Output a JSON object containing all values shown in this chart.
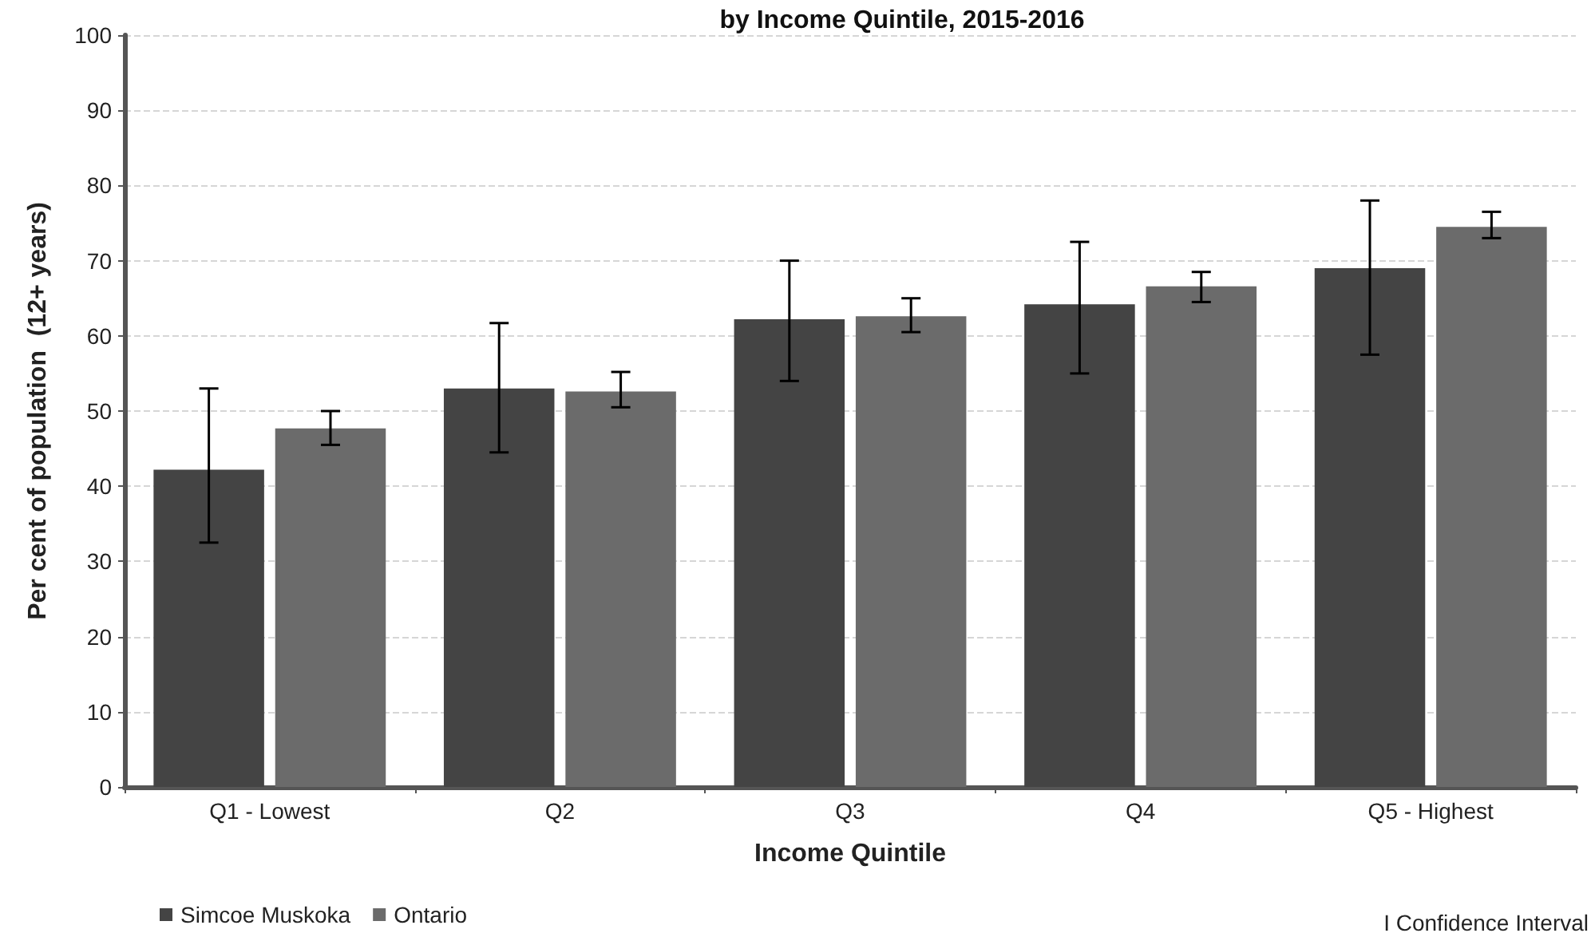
{
  "chart_data": {
    "type": "bar",
    "title": "by Income Quintile, 2015-2016",
    "xlabel": "Income Quintile",
    "ylabel": "Per cent of population  (12+ years)",
    "categories": [
      "Q1 - Lowest",
      "Q2",
      "Q3",
      "Q4",
      "Q5 - Highest"
    ],
    "series": [
      {
        "name": "Simcoe Muskoka",
        "color": "#444444",
        "values": [
          42.2,
          53,
          62.2,
          64.2,
          69
        ],
        "errors": [
          [
            32.5,
            53
          ],
          [
            44.5,
            61.7
          ],
          [
            54,
            70
          ],
          [
            55,
            72.5
          ],
          [
            57.5,
            78
          ]
        ]
      },
      {
        "name": "Ontario",
        "color": "#6b6b6b",
        "values": [
          47.7,
          52.6,
          62.6,
          66.6,
          74.5
        ],
        "errors": [
          [
            45.5,
            50
          ],
          [
            50.5,
            55.2
          ],
          [
            60.5,
            65
          ],
          [
            64.5,
            68.5
          ],
          [
            73,
            76.5
          ]
        ]
      }
    ],
    "ylim": [
      0,
      100
    ],
    "yticks": [
      0,
      10,
      20,
      30,
      40,
      50,
      60,
      70,
      80,
      90,
      100
    ],
    "grid": "y",
    "legend": "bottom left",
    "annotations": [
      "I Confidence Interval"
    ]
  }
}
